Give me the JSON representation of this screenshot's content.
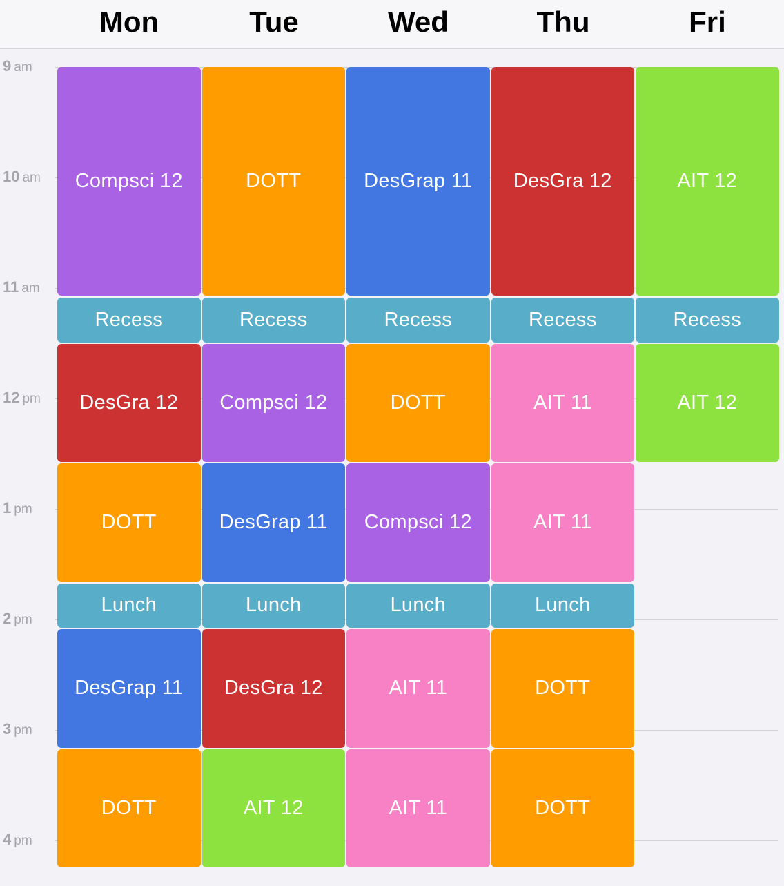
{
  "days": [
    "Mon",
    "Tue",
    "Wed",
    "Thu",
    "Fri"
  ],
  "hours": [
    {
      "num": "9",
      "ampm": "am"
    },
    {
      "num": "10",
      "ampm": "am"
    },
    {
      "num": "11",
      "ampm": "am"
    },
    {
      "num": "12",
      "ampm": "pm"
    },
    {
      "num": "1",
      "ampm": "pm"
    },
    {
      "num": "2",
      "ampm": "pm"
    },
    {
      "num": "3",
      "ampm": "pm"
    },
    {
      "num": "4",
      "ampm": "pm"
    }
  ],
  "colors": {
    "compsci": "#a862e3",
    "dott": "#ff9c00",
    "desgrap": "#4276e0",
    "desgra": "#cc3232",
    "ait12": "#8ee23f",
    "ait11": "#f880c4",
    "break": "#58adc8"
  },
  "events": [
    {
      "day": 0,
      "start": "9:00",
      "end": "11:05",
      "title": "Compsci 12",
      "color": "compsci"
    },
    {
      "day": 0,
      "start": "11:05",
      "end": "11:30",
      "title": "Recess",
      "color": "break"
    },
    {
      "day": 0,
      "start": "11:30",
      "end": "12:35",
      "title": "DesGra 12",
      "color": "desgra"
    },
    {
      "day": 0,
      "start": "12:35",
      "end": "13:40",
      "title": "DOTT",
      "color": "dott"
    },
    {
      "day": 0,
      "start": "13:40",
      "end": "14:05",
      "title": "Lunch",
      "color": "break"
    },
    {
      "day": 0,
      "start": "14:05",
      "end": "15:10",
      "title": "DesGrap 11",
      "color": "desgrap"
    },
    {
      "day": 0,
      "start": "15:10",
      "end": "16:15",
      "title": "DOTT",
      "color": "dott"
    },
    {
      "day": 1,
      "start": "9:00",
      "end": "11:05",
      "title": "DOTT",
      "color": "dott"
    },
    {
      "day": 1,
      "start": "11:05",
      "end": "11:30",
      "title": "Recess",
      "color": "break"
    },
    {
      "day": 1,
      "start": "11:30",
      "end": "12:35",
      "title": "Compsci 12",
      "color": "compsci"
    },
    {
      "day": 1,
      "start": "12:35",
      "end": "13:40",
      "title": "DesGrap 11",
      "color": "desgrap"
    },
    {
      "day": 1,
      "start": "13:40",
      "end": "14:05",
      "title": "Lunch",
      "color": "break"
    },
    {
      "day": 1,
      "start": "14:05",
      "end": "15:10",
      "title": "DesGra 12",
      "color": "desgra"
    },
    {
      "day": 1,
      "start": "15:10",
      "end": "16:15",
      "title": "AIT 12",
      "color": "ait12"
    },
    {
      "day": 2,
      "start": "9:00",
      "end": "11:05",
      "title": "DesGrap 11",
      "color": "desgrap"
    },
    {
      "day": 2,
      "start": "11:05",
      "end": "11:30",
      "title": "Recess",
      "color": "break"
    },
    {
      "day": 2,
      "start": "11:30",
      "end": "12:35",
      "title": "DOTT",
      "color": "dott"
    },
    {
      "day": 2,
      "start": "12:35",
      "end": "13:40",
      "title": "Compsci 12",
      "color": "compsci"
    },
    {
      "day": 2,
      "start": "13:40",
      "end": "14:05",
      "title": "Lunch",
      "color": "break"
    },
    {
      "day": 2,
      "start": "14:05",
      "end": "15:10",
      "title": "AIT 11",
      "color": "ait11"
    },
    {
      "day": 2,
      "start": "15:10",
      "end": "16:15",
      "title": "AIT 11",
      "color": "ait11"
    },
    {
      "day": 3,
      "start": "9:00",
      "end": "11:05",
      "title": "DesGra 12",
      "color": "desgra"
    },
    {
      "day": 3,
      "start": "11:05",
      "end": "11:30",
      "title": "Recess",
      "color": "break"
    },
    {
      "day": 3,
      "start": "11:30",
      "end": "12:35",
      "title": "AIT 11",
      "color": "ait11"
    },
    {
      "day": 3,
      "start": "12:35",
      "end": "13:40",
      "title": "AIT 11",
      "color": "ait11"
    },
    {
      "day": 3,
      "start": "13:40",
      "end": "14:05",
      "title": "Lunch",
      "color": "break"
    },
    {
      "day": 3,
      "start": "14:05",
      "end": "15:10",
      "title": "DOTT",
      "color": "dott"
    },
    {
      "day": 3,
      "start": "15:10",
      "end": "16:15",
      "title": "DOTT",
      "color": "dott"
    },
    {
      "day": 4,
      "start": "9:00",
      "end": "11:05",
      "title": "AIT 12",
      "color": "ait12"
    },
    {
      "day": 4,
      "start": "11:05",
      "end": "11:30",
      "title": "Recess",
      "color": "break"
    },
    {
      "day": 4,
      "start": "11:30",
      "end": "12:35",
      "title": "AIT 12",
      "color": "ait12"
    }
  ]
}
